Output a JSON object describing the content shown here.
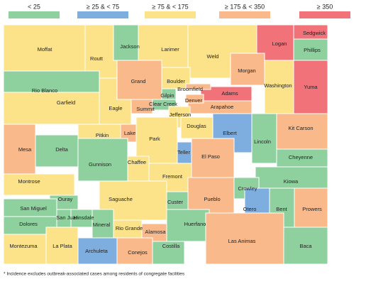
{
  "legend": [
    {
      "label": "< 25",
      "color": "#8fd19e"
    },
    {
      "label": "≥ 25 & < 75",
      "color": "#7eaee0"
    },
    {
      "label": "≥ 75 & < 175",
      "color": "#fce38a"
    },
    {
      "label": "≥ 175 & < 350",
      "color": "#f9b98a"
    },
    {
      "label": "≥ 350",
      "color": "#f2727a"
    }
  ],
  "counties": [
    {
      "name": "Moffat",
      "bin": 2
    },
    {
      "name": "Routt",
      "bin": 2
    },
    {
      "name": "Jackson",
      "bin": 0
    },
    {
      "name": "Larimer",
      "bin": 2
    },
    {
      "name": "Weld",
      "bin": 2
    },
    {
      "name": "Logan",
      "bin": 4
    },
    {
      "name": "Sedgwick",
      "bin": 4
    },
    {
      "name": "Phillips",
      "bin": 0
    },
    {
      "name": "Rio Blanco",
      "bin": 0
    },
    {
      "name": "Garfield",
      "bin": 2
    },
    {
      "name": "Mesa",
      "bin": 3
    },
    {
      "name": "Eagle",
      "bin": 2
    },
    {
      "name": "Grand",
      "bin": 3
    },
    {
      "name": "Boulder",
      "bin": 2
    },
    {
      "name": "Morgan",
      "bin": 3
    },
    {
      "name": "Washington",
      "bin": 2
    },
    {
      "name": "Yuma",
      "bin": 4
    },
    {
      "name": "Adams",
      "bin": 4
    },
    {
      "name": "Arapahoe",
      "bin": 3
    },
    {
      "name": "Broomfield",
      "bin": 3
    },
    {
      "name": "Denver",
      "bin": 3
    },
    {
      "name": "Gilpin",
      "bin": 0
    },
    {
      "name": "Clear Creek",
      "bin": 0
    },
    {
      "name": "Summit",
      "bin": 3
    },
    {
      "name": "Jefferson",
      "bin": 2
    },
    {
      "name": "Douglas",
      "bin": 2
    },
    {
      "name": "Elbert",
      "bin": 1
    },
    {
      "name": "Lincoln",
      "bin": 0
    },
    {
      "name": "Kit Carson",
      "bin": 3
    },
    {
      "name": "Lake",
      "bin": 3
    },
    {
      "name": "Pitkin",
      "bin": 2
    },
    {
      "name": "Park",
      "bin": 2
    },
    {
      "name": "Teller",
      "bin": 1
    },
    {
      "name": "El Paso",
      "bin": 3
    },
    {
      "name": "Cheyenne",
      "bin": 0
    },
    {
      "name": "Delta",
      "bin": 0
    },
    {
      "name": "Gunnison",
      "bin": 0
    },
    {
      "name": "Chaffee",
      "bin": 2
    },
    {
      "name": "Fremont",
      "bin": 2
    },
    {
      "name": "Kiowa",
      "bin": 0
    },
    {
      "name": "Montrose",
      "bin": 2
    },
    {
      "name": "Crowley",
      "bin": 0
    },
    {
      "name": "Pueblo",
      "bin": 3
    },
    {
      "name": "Custer",
      "bin": 0
    },
    {
      "name": "Saguache",
      "bin": 2
    },
    {
      "name": "Ouray",
      "bin": 0
    },
    {
      "name": "Otero",
      "bin": 1
    },
    {
      "name": "Bent",
      "bin": 0
    },
    {
      "name": "Prowers",
      "bin": 3
    },
    {
      "name": "San Miguel",
      "bin": 0
    },
    {
      "name": "San Juan",
      "bin": 0
    },
    {
      "name": "Hinsdale",
      "bin": 0
    },
    {
      "name": "Dolores",
      "bin": 0
    },
    {
      "name": "Mineral",
      "bin": 0
    },
    {
      "name": "Rio Grande",
      "bin": 2
    },
    {
      "name": "Alamosa",
      "bin": 3
    },
    {
      "name": "Huerfano",
      "bin": 0
    },
    {
      "name": "Las Animas",
      "bin": 3
    },
    {
      "name": "Baca",
      "bin": 0
    },
    {
      "name": "Montezuma",
      "bin": 2
    },
    {
      "name": "La Plata",
      "bin": 2
    },
    {
      "name": "Archuleta",
      "bin": 1
    },
    {
      "name": "Conejos",
      "bin": 3
    },
    {
      "name": "Costilla",
      "bin": 0
    }
  ],
  "footnote": "* Incidence excludes outbreak-associated cases among residents of congregate facilities"
}
